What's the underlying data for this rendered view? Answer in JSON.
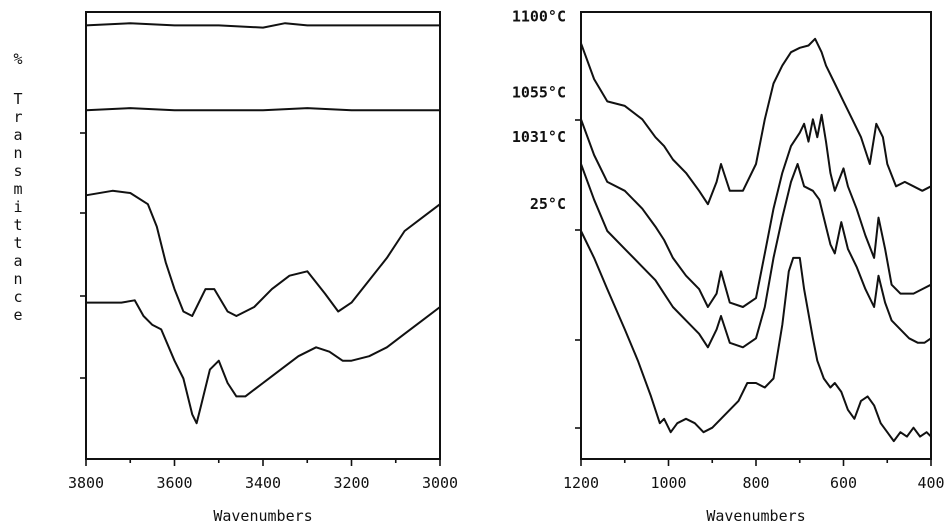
{
  "ylabel": "% Transmittance",
  "chart_data": [
    {
      "type": "line",
      "title": "",
      "xlabel": "Wavenumbers",
      "ylabel": "% Transmittance",
      "xlim": [
        3800,
        3000
      ],
      "x_reversed": true,
      "x_ticks": [
        3800,
        3600,
        3400,
        3200,
        3000
      ],
      "grid": false,
      "series": [
        {
          "x": [
            3800,
            3700,
            3600,
            3500,
            3400,
            3350,
            3300,
            3200,
            3100,
            3000
          ],
          "y": [
            97,
            97.5,
            97,
            97,
            96.5,
            97.5,
            97,
            97,
            97,
            97
          ]
        },
        {
          "x": [
            3800,
            3700,
            3600,
            3500,
            3400,
            3300,
            3200,
            3100,
            3000
          ],
          "y": [
            78,
            78.5,
            78,
            78,
            78,
            78.5,
            78,
            78,
            78
          ]
        },
        {
          "x": [
            3800,
            3740,
            3700,
            3660,
            3640,
            3620,
            3600,
            3580,
            3560,
            3530,
            3510,
            3480,
            3460,
            3420,
            3380,
            3340,
            3300,
            3260,
            3230,
            3200,
            3160,
            3120,
            3080,
            3040,
            3000
          ],
          "y": [
            59,
            60,
            59.5,
            57,
            52,
            44,
            38,
            33,
            32,
            38,
            38,
            33,
            32,
            34,
            38,
            41,
            42,
            37,
            33,
            35,
            40,
            45,
            51,
            54,
            57
          ]
        },
        {
          "x": [
            3800,
            3720,
            3690,
            3670,
            3650,
            3630,
            3600,
            3580,
            3560,
            3550,
            3540,
            3520,
            3500,
            3480,
            3460,
            3440,
            3400,
            3360,
            3320,
            3280,
            3250,
            3220,
            3200,
            3160,
            3120,
            3080,
            3040,
            3000
          ],
          "y": [
            35,
            35,
            35.5,
            32,
            30,
            29,
            22,
            18,
            10,
            8,
            12,
            20,
            22,
            17,
            14,
            14,
            17,
            20,
            23,
            25,
            24,
            22,
            22,
            23,
            25,
            28,
            31,
            34
          ]
        }
      ]
    },
    {
      "type": "line",
      "title": "",
      "xlabel": "Wavenumbers",
      "ylabel": "% Transmittance",
      "xlim": [
        1200,
        400
      ],
      "x_reversed": true,
      "x_ticks": [
        1200,
        1000,
        800,
        600,
        400
      ],
      "grid": false,
      "series": [
        {
          "name": "1100°C",
          "x": [
            1200,
            1170,
            1140,
            1100,
            1060,
            1030,
            1010,
            990,
            960,
            930,
            910,
            890,
            880,
            860,
            830,
            800,
            780,
            760,
            740,
            720,
            700,
            680,
            665,
            650,
            640,
            620,
            600,
            580,
            560,
            540,
            525,
            510,
            500,
            480,
            460,
            440,
            420,
            400
          ],
          "y": [
            93,
            85,
            80,
            79,
            76,
            72,
            70,
            67,
            64,
            60,
            57,
            62,
            66,
            60,
            60,
            66,
            76,
            84,
            88,
            91,
            92,
            92.5,
            94,
            91,
            88,
            84,
            80,
            76,
            72,
            66,
            75,
            72,
            66,
            61,
            62,
            61,
            60,
            61
          ]
        },
        {
          "name": "1055°C",
          "x": [
            1200,
            1170,
            1140,
            1100,
            1060,
            1030,
            1010,
            990,
            960,
            930,
            910,
            890,
            880,
            860,
            830,
            800,
            780,
            760,
            740,
            720,
            700,
            690,
            680,
            670,
            660,
            650,
            640,
            630,
            620,
            600,
            590,
            570,
            550,
            530,
            520,
            505,
            490,
            470,
            440,
            420,
            400
          ],
          "y": [
            76,
            68,
            62,
            60,
            56,
            52,
            49,
            45,
            41,
            38,
            34,
            37,
            42,
            35,
            34,
            36,
            46,
            56,
            64,
            70,
            73,
            75,
            71,
            76,
            72,
            77,
            71,
            64,
            60,
            65,
            61,
            56,
            50,
            45,
            54,
            47,
            39,
            37,
            37,
            38,
            39
          ]
        },
        {
          "name": "1031°C",
          "x": [
            1200,
            1170,
            1140,
            1100,
            1060,
            1030,
            1010,
            990,
            960,
            930,
            910,
            890,
            880,
            860,
            830,
            800,
            780,
            760,
            740,
            720,
            705,
            690,
            670,
            655,
            640,
            630,
            620,
            605,
            590,
            570,
            550,
            530,
            520,
            505,
            490,
            470,
            450,
            430,
            415,
            400
          ],
          "y": [
            66,
            58,
            51,
            47,
            43,
            40,
            37,
            34,
            31,
            28,
            25,
            29,
            32,
            26,
            25,
            27,
            34,
            45,
            54,
            62,
            66,
            61,
            60,
            58,
            52,
            48,
            46,
            53,
            47,
            43,
            38,
            34,
            41,
            35,
            31,
            29,
            27,
            26,
            26,
            27
          ]
        },
        {
          "name": "25°C",
          "x": [
            1200,
            1170,
            1140,
            1100,
            1070,
            1040,
            1020,
            1010,
            995,
            980,
            960,
            940,
            920,
            900,
            880,
            860,
            840,
            820,
            800,
            780,
            760,
            740,
            725,
            715,
            700,
            690,
            670,
            660,
            645,
            630,
            620,
            605,
            590,
            575,
            560,
            545,
            530,
            515,
            500,
            485,
            470,
            455,
            440,
            425,
            410,
            400
          ],
          "y": [
            51,
            45,
            38,
            29,
            22,
            14,
            8,
            9,
            6,
            8,
            9,
            8,
            6,
            7,
            9,
            11,
            13,
            17,
            17,
            16,
            18,
            30,
            42,
            45,
            45,
            38,
            27,
            22,
            18,
            16,
            17,
            15,
            11,
            9,
            13,
            14,
            12,
            8,
            6,
            4,
            6,
            5,
            7,
            5,
            6,
            5
          ]
        }
      ]
    }
  ]
}
